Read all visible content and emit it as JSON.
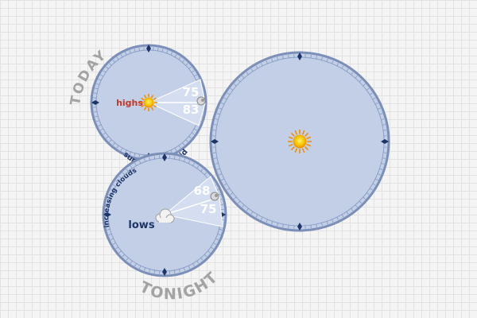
{
  "today": {
    "label": "TODAY",
    "highs_label": "highs",
    "temp_high_1": "75",
    "temp_high_2": "83",
    "condition": "sunny and humid",
    "icon": "sun-icon"
  },
  "tonight": {
    "label": "TONIGHT",
    "lows_label": "lows",
    "temp_low_1": "68",
    "temp_low_2": "75",
    "condition": "increasing clouds",
    "icon": "cloud-icon"
  },
  "current": {
    "icon": "sun-icon"
  },
  "colors": {
    "dial_fill": "#c2cfe6",
    "dial_ring": "#7c8fb8",
    "dial_dark": "#1d3466",
    "highs_text": "#c0392b",
    "label_gray": "#9a9a9a",
    "sun_yellow": "#f5c400",
    "sun_orange": "#f08a00"
  }
}
